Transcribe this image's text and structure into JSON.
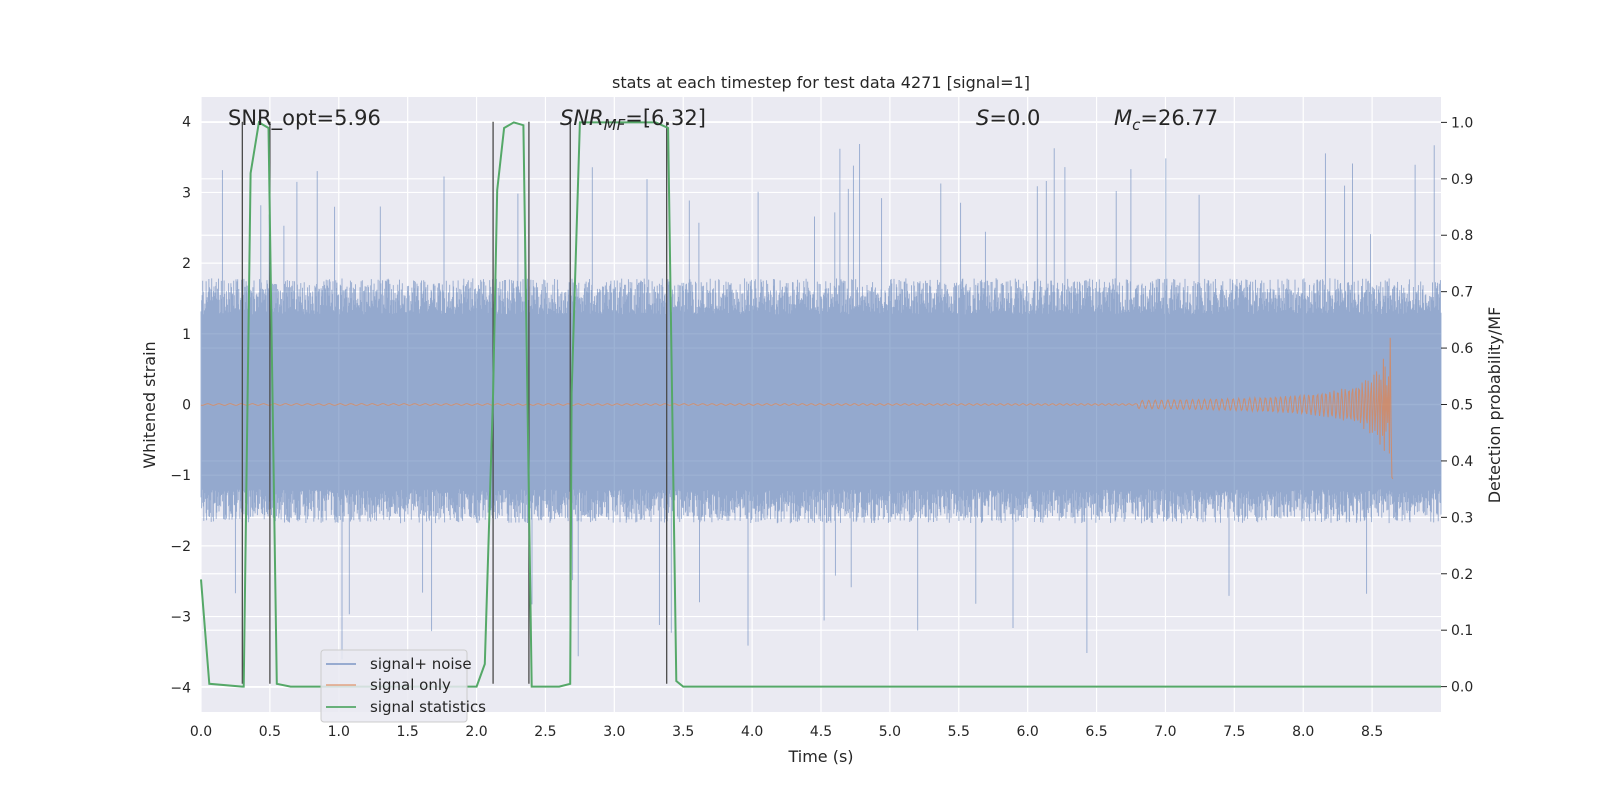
{
  "chart_data": {
    "type": "line",
    "title": "stats at each timestep for test data 4271 [signal=1]",
    "xlabel": "Time (s)",
    "ylabel": "Whitened strain",
    "ylabel_right": "Detection probability/MF",
    "xlim": [
      0.0,
      9.0
    ],
    "ylim": [
      -4.35,
      4.35
    ],
    "ylim_right": [
      -0.045,
      1.045
    ],
    "xticks": [
      "0.0",
      "0.5",
      "1.0",
      "1.5",
      "2.0",
      "2.5",
      "3.0",
      "3.5",
      "4.0",
      "4.5",
      "5.0",
      "5.5",
      "6.0",
      "6.5",
      "7.0",
      "7.5",
      "8.0",
      "8.5"
    ],
    "yticks": [
      "4",
      "3",
      "2",
      "1",
      "0",
      "−1",
      "−2",
      "−3",
      "−4"
    ],
    "yticks_right": [
      "1.0",
      "0.9",
      "0.8",
      "0.7",
      "0.6",
      "0.5",
      "0.4",
      "0.3",
      "0.2",
      "0.1",
      "0.0"
    ],
    "grid": true,
    "legend_position": "lower-left",
    "annotations": {
      "snr_opt": "SNR_opt=5.96",
      "snr_mf_main": "SNR",
      "snr_mf_sub": "MF",
      "snr_mf_value": "=[6.32]",
      "s_main": "S",
      "s_value": "=0.0",
      "mc_main": "M",
      "mc_sub": "c",
      "mc_value": "=26.77"
    },
    "series": [
      {
        "name": "signal+ noise",
        "color": "#4c72b0",
        "noise_envelope_typical": [
          -1.6,
          1.7
        ],
        "noise_extremes": [
          -3.95,
          3.9
        ],
        "x_range": [
          0.0,
          9.0
        ]
      },
      {
        "name": "signal only",
        "color": "#dd8452",
        "description_points": [
          [
            0.0,
            0.0
          ],
          [
            7.0,
            0.02
          ],
          [
            8.0,
            0.15
          ],
          [
            8.4,
            0.45
          ],
          [
            8.6,
            1.3
          ],
          [
            8.65,
            0.0
          ]
        ]
      },
      {
        "name": "signal statistics",
        "color": "#55a868",
        "axis": "right",
        "x": [
          0.0,
          0.06,
          0.3,
          0.31,
          0.36,
          0.42,
          0.49,
          0.55,
          0.65,
          2.0,
          2.06,
          2.12,
          2.15,
          2.2,
          2.27,
          2.34,
          2.4,
          2.44,
          2.5,
          2.6,
          2.68,
          2.69,
          2.75,
          2.8,
          3.0,
          3.3,
          3.39,
          3.45,
          3.5,
          9.0
        ],
        "y": [
          0.19,
          0.005,
          0.0,
          0.0,
          0.91,
          1.0,
          0.99,
          0.005,
          0.0,
          0.0,
          0.04,
          0.52,
          0.88,
          0.99,
          1.0,
          0.995,
          0.0,
          0.0,
          0.0,
          0.0,
          0.005,
          0.52,
          1.0,
          1.0,
          1.0,
          1.0,
          0.99,
          0.01,
          0.0,
          0.0
        ]
      }
    ],
    "vertical_markers_x": [
      0.3,
      0.5,
      2.12,
      2.38,
      2.68,
      3.38
    ]
  }
}
